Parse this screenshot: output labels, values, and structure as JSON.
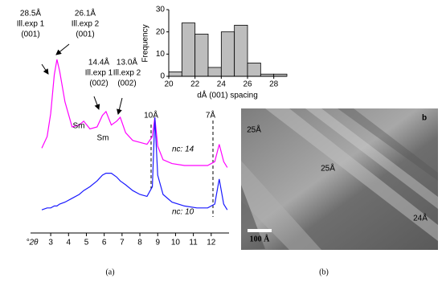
{
  "chart_data": [
    {
      "type": "line",
      "x_label": "°2θ",
      "xlim": [
        2.5,
        13
      ],
      "xticks": [
        3,
        4,
        5,
        6,
        7,
        8,
        9,
        10,
        11,
        12
      ],
      "ylim": [
        0,
        100
      ],
      "x": [
        2.5,
        2.8,
        3.0,
        3.2,
        3.35,
        3.5,
        3.8,
        4.2,
        4.6,
        4.85,
        5.2,
        5.6,
        5.9,
        6.1,
        6.4,
        6.7,
        6.9,
        7.2,
        7.6,
        8.0,
        8.4,
        8.7,
        8.84,
        9.0,
        9.3,
        9.8,
        10.5,
        11.2,
        11.8,
        12.2,
        12.45,
        12.7,
        12.9
      ],
      "series": [
        {
          "name": "nc: 14",
          "color": "#ff00ff",
          "values": [
            44,
            50,
            62,
            82,
            90,
            84,
            68,
            55,
            56,
            58,
            54,
            55,
            61,
            63,
            56,
            58,
            60,
            52,
            48,
            47,
            46,
            50,
            60,
            45,
            38,
            36,
            35,
            35,
            35,
            37,
            46,
            37,
            34
          ]
        },
        {
          "name": "nc: 10",
          "color": "#1a1aff",
          "values": [
            12,
            13,
            13,
            14,
            14,
            15,
            16,
            18,
            20,
            22,
            24,
            27,
            30,
            31,
            31,
            29,
            27,
            25,
            22,
            20,
            19,
            24,
            60,
            30,
            20,
            16,
            14,
            13,
            13,
            15,
            28,
            15,
            12
          ]
        }
      ],
      "annotations": [
        [
          "28.5Å",
          "Ill.exp 1",
          "(001)"
        ],
        [
          "26.1Å",
          "Ill.exp 2",
          "(001)"
        ],
        [
          "14.4Å",
          "Ill.exp 1",
          "(002)"
        ],
        [
          "13.0Å",
          "Ill.exp 2",
          "(002)"
        ],
        [
          "Sm"
        ],
        [
          "Sm"
        ],
        [
          "10Å"
        ],
        [
          "7Å"
        ]
      ]
    },
    {
      "type": "histogram",
      "x_label": "dÅ (001) spacing",
      "y_label": "Frequency",
      "color": "#bdbdbd",
      "bins": [
        20,
        21,
        22,
        23,
        24,
        25,
        26,
        27,
        28,
        29
      ],
      "values": [
        2,
        24,
        19,
        4,
        20,
        23,
        6,
        1,
        1
      ],
      "xlim": [
        20,
        29
      ],
      "xticks": [
        20,
        22,
        24,
        26,
        28
      ],
      "ylim": [
        0,
        30
      ],
      "yticks": [
        0,
        10,
        20,
        30
      ]
    }
  ],
  "panels": {
    "caption_a": "(a)",
    "caption_b": "(b)",
    "image": {
      "spacings": [
        "25Å",
        "25Å",
        "24Å"
      ],
      "scale_bar": "100 Å",
      "letter": "b"
    }
  }
}
